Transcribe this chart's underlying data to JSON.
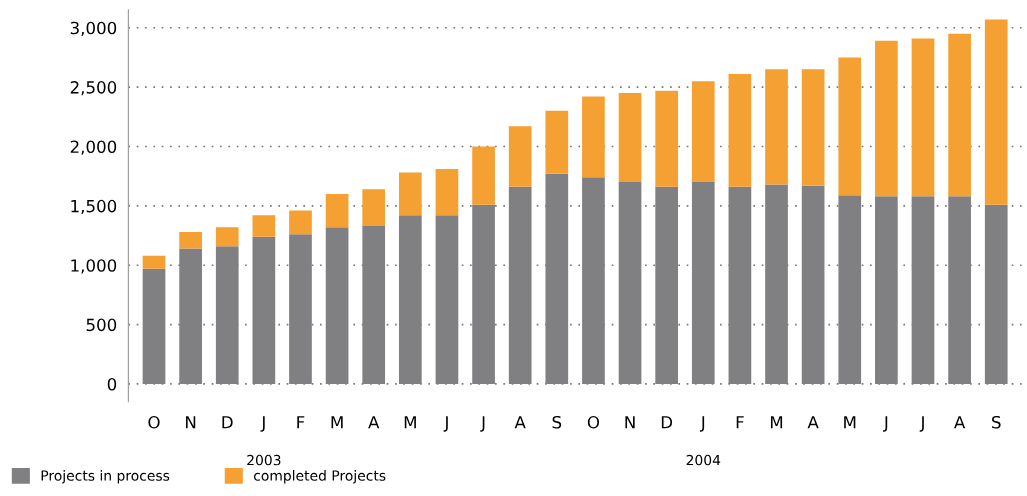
{
  "chart_data": {
    "type": "bar",
    "stacked": true,
    "categories": [
      "O",
      "N",
      "D",
      "J",
      "F",
      "M",
      "A",
      "M",
      "J",
      "J",
      "A",
      "S",
      "O",
      "N",
      "D",
      "J",
      "F",
      "M",
      "A",
      "M",
      "J",
      "J",
      "A",
      "S"
    ],
    "series": [
      {
        "name": "Projects in process",
        "color": "#808083",
        "values": [
          970,
          1140,
          1160,
          1240,
          1260,
          1320,
          1330,
          1420,
          1420,
          1510,
          1660,
          1770,
          1740,
          1700,
          1660,
          1700,
          1660,
          1680,
          1670,
          1590,
          1580,
          1580,
          1580,
          1510
        ]
      },
      {
        "name": "completed Projects",
        "color": "#f5a032",
        "values": [
          110,
          140,
          160,
          180,
          200,
          280,
          310,
          360,
          390,
          490,
          510,
          530,
          680,
          750,
          810,
          850,
          950,
          970,
          980,
          1160,
          1310,
          1330,
          1370,
          1560
        ]
      }
    ],
    "ylim": [
      -150,
      3150
    ],
    "yticks": [
      {
        "value": 0,
        "label": "0"
      },
      {
        "value": 500,
        "label": "500"
      },
      {
        "value": 1000,
        "label": "1,000"
      },
      {
        "value": 1500,
        "label": "1,500"
      },
      {
        "value": 2000,
        "label": "2,000"
      },
      {
        "value": 2500,
        "label": "2,500"
      },
      {
        "value": 3000,
        "label": "3,000"
      }
    ],
    "grid": "y",
    "legend": "bottom left",
    "annotations": [
      "2003",
      "2004"
    ]
  }
}
